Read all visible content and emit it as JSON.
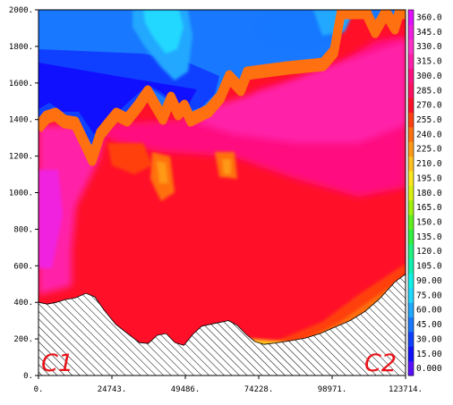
{
  "chart_data": {
    "type": "heatmap",
    "title": "",
    "xlabel": "",
    "ylabel": "",
    "xlim": [
      0,
      123714
    ],
    "ylim": [
      0,
      2000
    ],
    "x_tick_labels": [
      "0.",
      "24743.",
      "49486.",
      "74228.",
      "98971.",
      "123714."
    ],
    "x_tick_values": [
      0,
      24743,
      49486,
      74228,
      98971,
      123714
    ],
    "y_tick_labels": [
      "0.",
      "200.",
      "400.",
      "600.",
      "800.",
      "1000.",
      "1200.",
      "1400.",
      "1600.",
      "1800.",
      "2000."
    ],
    "y_tick_values": [
      0,
      200,
      400,
      600,
      800,
      1000,
      1200,
      1400,
      1600,
      1800,
      2000
    ],
    "colorbar": {
      "levels": [
        0,
        15,
        30,
        45,
        60,
        75,
        90,
        105,
        120,
        135,
        150,
        165,
        180,
        195,
        210,
        225,
        240,
        255,
        270,
        285,
        300,
        315,
        330,
        345,
        360
      ],
      "labels": [
        "0.000",
        "15.00",
        "30.00",
        "45.00",
        "60.00",
        "75.00",
        "90.00",
        "105.0",
        "120.0",
        "135.0",
        "150.0",
        "165.0",
        "180.0",
        "195.0",
        "210.0",
        "225.0",
        "240.0",
        "255.0",
        "270.0",
        "285.0",
        "300.0",
        "315.0",
        "330.0",
        "345.0",
        "360.0"
      ],
      "colors": [
        "#5a10ff",
        "#1010ff",
        "#1040ff",
        "#1878ff",
        "#20a8ff",
        "#20d8ff",
        "#10f0e8",
        "#10f0b0",
        "#20f080",
        "#30f040",
        "#60f020",
        "#a0f010",
        "#d8f010",
        "#f8e820",
        "#ffc020",
        "#ff9a18",
        "#ff7010",
        "#ff4010",
        "#ff1028",
        "#ff1060",
        "#ff1080",
        "#ff20a8",
        "#ff30c8",
        "#f020e0",
        "#e010ff"
      ]
    },
    "terrain_profile": {
      "x": [
        0,
        3000,
        6000,
        9000,
        12500,
        16000,
        19000,
        22000,
        26000,
        30000,
        34000,
        37000,
        40000,
        43000,
        46000,
        49000,
        52000,
        55000,
        58000,
        61000,
        64000,
        67000,
        70000,
        73000,
        76000,
        80000,
        85000,
        90000,
        95000,
        100000,
        105000,
        110000,
        115000,
        120000,
        123714
      ],
      "y": [
        400,
        390,
        400,
        415,
        425,
        450,
        430,
        360,
        280,
        230,
        180,
        175,
        220,
        230,
        180,
        165,
        225,
        270,
        280,
        290,
        300,
        275,
        225,
        185,
        170,
        178,
        190,
        205,
        230,
        265,
        300,
        350,
        420,
        510,
        555
      ]
    },
    "corner_labels": {
      "left": "C1",
      "right": "C2"
    }
  }
}
